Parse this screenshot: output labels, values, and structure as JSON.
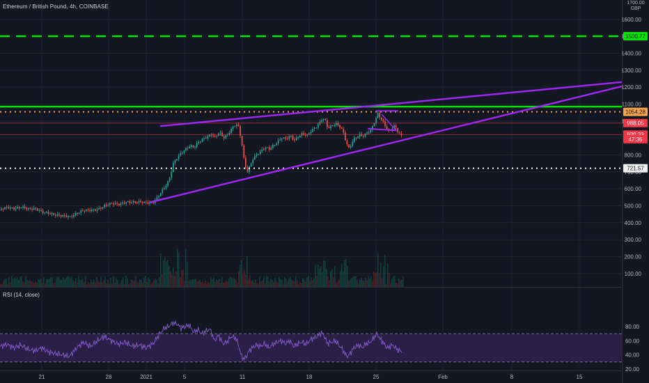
{
  "title": "Ethereum / British Pound, 4h, COINBASE",
  "currency_line1": "1700.00",
  "currency_line2": "GBP",
  "rsi_label": "RSI (14, close)",
  "price_axis": {
    "ticks": [
      "1600.00",
      "1500.00",
      "1400.00",
      "1300.00",
      "1200.00",
      "1100.00",
      "1000.00",
      "900.00",
      "800.00",
      "700.00",
      "600.00",
      "500.00",
      "400.00",
      "300.00",
      "200.00",
      "100.00"
    ],
    "tick_values": [
      1600,
      1500,
      1400,
      1300,
      1200,
      1100,
      1000,
      900,
      800,
      700,
      600,
      500,
      400,
      300,
      200,
      100
    ]
  },
  "rsi_axis": {
    "ticks": [
      "80.00",
      "60.00",
      "40.00",
      "20.00"
    ],
    "tick_values": [
      80,
      60,
      40,
      20
    ],
    "upper_band": 70,
    "lower_band": 30
  },
  "time_axis": {
    "labels": [
      "21",
      "28",
      "2021",
      "5",
      "11",
      "18",
      "25",
      "Feb",
      "8",
      "15"
    ]
  },
  "price_labels": [
    {
      "text": "1500.77",
      "value": 1500.77,
      "color": "#00e600",
      "text_color": "#131722"
    },
    {
      "text": "1054.28",
      "value": 1054.28,
      "color": "#f7a44a",
      "text_color": "#131722"
    },
    {
      "text": "988.05",
      "value": 988.05,
      "color": "#f23645",
      "text_color": "#ffffff"
    },
    {
      "text": "920.33",
      "value": 920.33,
      "color": "#f23645",
      "text_color": "#ffffff"
    },
    {
      "text": "47:36",
      "value": 893,
      "color": "#f23645",
      "text_color": "#ffffff"
    },
    {
      "text": "721.57",
      "value": 721.57,
      "color": "#f0f0f0",
      "text_color": "#131722"
    }
  ],
  "horizontal_lines": [
    {
      "value": 1500.77,
      "color": "#00e600",
      "style": "dashed"
    },
    {
      "value": 1085,
      "color": "#00e600",
      "style": "solid"
    },
    {
      "value": 1054.28,
      "color": "#f7a44a",
      "style": "dotted"
    },
    {
      "value": 988.05,
      "color": "#f23645",
      "style": "thin"
    },
    {
      "value": 920.33,
      "color": "#f23645",
      "style": "thin"
    },
    {
      "value": 721.57,
      "color": "#ffffff",
      "style": "dotted"
    }
  ],
  "trendlines": [
    {
      "name": "upper",
      "color": "#9c27f0"
    },
    {
      "name": "lower",
      "color": "#9c27f0"
    }
  ],
  "colors": {
    "up": "#26a69a",
    "down": "#ef5350",
    "rsi_line": "#7e57c2",
    "rsi_band_fill": "#2a1f47",
    "background": "#131722",
    "grid": "#1e222d",
    "axis_text": "#b2b5be"
  },
  "chart_data": {
    "type": "candlestick",
    "symbol": "Ethereum / British Pound",
    "interval": "4h",
    "exchange": "COINBASE",
    "price_range": [
      50,
      1700
    ],
    "close_path": [
      [
        0,
        475
      ],
      [
        10,
        485
      ],
      [
        20,
        478
      ],
      [
        30,
        490
      ],
      [
        40,
        482
      ],
      [
        50,
        488
      ],
      [
        60,
        470
      ],
      [
        70,
        460
      ],
      [
        80,
        448
      ],
      [
        90,
        440
      ],
      [
        100,
        430
      ],
      [
        110,
        450
      ],
      [
        120,
        468
      ],
      [
        130,
        470
      ],
      [
        140,
        478
      ],
      [
        150,
        505
      ],
      [
        160,
        520
      ],
      [
        170,
        515
      ],
      [
        180,
        525
      ],
      [
        190,
        522
      ],
      [
        200,
        520
      ],
      [
        210,
        512
      ],
      [
        220,
        515
      ],
      [
        228,
        560
      ],
      [
        236,
        610
      ],
      [
        242,
        650
      ],
      [
        248,
        750
      ],
      [
        254,
        790
      ],
      [
        260,
        820
      ],
      [
        266,
        840
      ],
      [
        272,
        860
      ],
      [
        278,
        850
      ],
      [
        284,
        880
      ],
      [
        290,
        895
      ],
      [
        296,
        905
      ],
      [
        302,
        920
      ],
      [
        308,
        900
      ],
      [
        314,
        930
      ],
      [
        320,
        895
      ],
      [
        326,
        915
      ],
      [
        332,
        950
      ],
      [
        338,
        980
      ],
      [
        342,
        960
      ],
      [
        346,
        880
      ],
      [
        350,
        760
      ],
      [
        354,
        700
      ],
      [
        358,
        735
      ],
      [
        362,
        780
      ],
      [
        368,
        810
      ],
      [
        374,
        830
      ],
      [
        380,
        850
      ],
      [
        386,
        840
      ],
      [
        392,
        860
      ],
      [
        398,
        880
      ],
      [
        404,
        900
      ],
      [
        410,
        890
      ],
      [
        416,
        910
      ],
      [
        422,
        880
      ],
      [
        428,
        905
      ],
      [
        434,
        920
      ],
      [
        440,
        910
      ],
      [
        446,
        940
      ],
      [
        452,
        960
      ],
      [
        458,
        990
      ],
      [
        462,
        1020
      ],
      [
        466,
        1010
      ],
      [
        470,
        960
      ],
      [
        476,
        980
      ],
      [
        482,
        990
      ],
      [
        488,
        970
      ],
      [
        492,
        940
      ],
      [
        496,
        880
      ],
      [
        500,
        840
      ],
      [
        504,
        870
      ],
      [
        508,
        895
      ],
      [
        512,
        905
      ],
      [
        516,
        915
      ],
      [
        520,
        905
      ],
      [
        526,
        925
      ],
      [
        532,
        940
      ],
      [
        538,
        1000
      ],
      [
        542,
        1040
      ],
      [
        546,
        1010
      ],
      [
        550,
        985
      ],
      [
        554,
        960
      ],
      [
        558,
        935
      ],
      [
        562,
        960
      ],
      [
        566,
        975
      ],
      [
        570,
        945
      ],
      [
        574,
        925
      ],
      [
        578,
        905
      ]
    ],
    "rsi_path": [
      [
        0,
        52
      ],
      [
        10,
        55
      ],
      [
        20,
        50
      ],
      [
        30,
        54
      ],
      [
        40,
        48
      ],
      [
        50,
        46
      ],
      [
        60,
        50
      ],
      [
        70,
        44
      ],
      [
        80,
        42
      ],
      [
        90,
        40
      ],
      [
        100,
        38
      ],
      [
        110,
        50
      ],
      [
        120,
        58
      ],
      [
        130,
        52
      ],
      [
        140,
        60
      ],
      [
        150,
        66
      ],
      [
        160,
        60
      ],
      [
        170,
        55
      ],
      [
        180,
        58
      ],
      [
        190,
        52
      ],
      [
        200,
        54
      ],
      [
        210,
        50
      ],
      [
        220,
        56
      ],
      [
        228,
        68
      ],
      [
        236,
        78
      ],
      [
        242,
        80
      ],
      [
        248,
        85
      ],
      [
        254,
        84
      ],
      [
        260,
        78
      ],
      [
        266,
        80
      ],
      [
        272,
        82
      ],
      [
        278,
        72
      ],
      [
        284,
        76
      ],
      [
        290,
        70
      ],
      [
        296,
        74
      ],
      [
        302,
        76
      ],
      [
        308,
        60
      ],
      [
        314,
        68
      ],
      [
        320,
        56
      ],
      [
        326,
        58
      ],
      [
        332,
        66
      ],
      [
        338,
        64
      ],
      [
        342,
        56
      ],
      [
        346,
        40
      ],
      [
        350,
        34
      ],
      [
        354,
        38
      ],
      [
        358,
        46
      ],
      [
        362,
        50
      ],
      [
        368,
        54
      ],
      [
        374,
        52
      ],
      [
        380,
        56
      ],
      [
        386,
        50
      ],
      [
        392,
        55
      ],
      [
        398,
        58
      ],
      [
        404,
        60
      ],
      [
        410,
        56
      ],
      [
        416,
        60
      ],
      [
        422,
        52
      ],
      [
        428,
        56
      ],
      [
        434,
        58
      ],
      [
        440,
        55
      ],
      [
        446,
        62
      ],
      [
        452,
        64
      ],
      [
        458,
        68
      ],
      [
        462,
        72
      ],
      [
        466,
        66
      ],
      [
        470,
        56
      ],
      [
        476,
        58
      ],
      [
        482,
        60
      ],
      [
        488,
        52
      ],
      [
        492,
        48
      ],
      [
        496,
        40
      ],
      [
        500,
        38
      ],
      [
        504,
        44
      ],
      [
        508,
        50
      ],
      [
        512,
        52
      ],
      [
        516,
        54
      ],
      [
        520,
        50
      ],
      [
        526,
        56
      ],
      [
        532,
        58
      ],
      [
        538,
        66
      ],
      [
        542,
        70
      ],
      [
        546,
        62
      ],
      [
        550,
        58
      ],
      [
        554,
        52
      ],
      [
        558,
        50
      ],
      [
        562,
        54
      ],
      [
        566,
        52
      ],
      [
        570,
        48
      ],
      [
        574,
        46
      ],
      [
        578,
        44
      ]
    ]
  }
}
